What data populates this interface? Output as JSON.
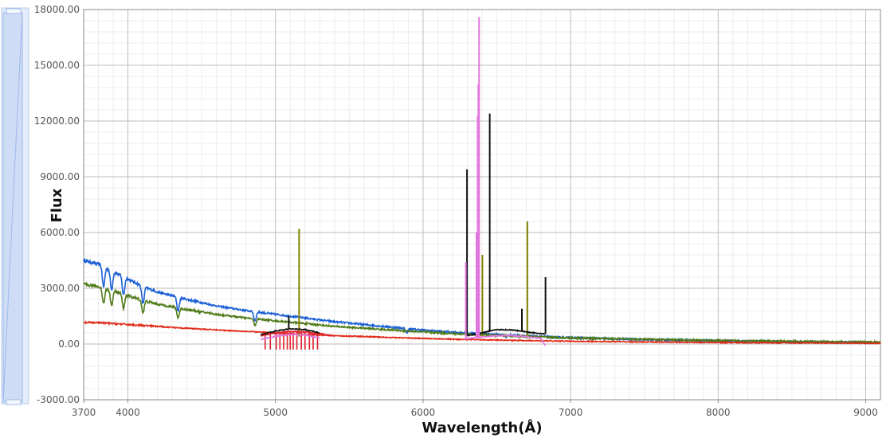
{
  "chart_data": {
    "type": "line",
    "title": "",
    "xlabel": "Wavelength(Å)",
    "ylabel": "Flux",
    "xlim": [
      3700,
      9100
    ],
    "ylim": [
      -3000,
      18000
    ],
    "x_ticks": [
      3700,
      4000,
      5000,
      6000,
      7000,
      8000,
      9000
    ],
    "y_ticks": [
      -3000,
      0,
      3000,
      6000,
      9000,
      12000,
      15000,
      18000
    ],
    "y_tick_labels": [
      "-3000.00",
      "0.00",
      "3000.00",
      "6000.00",
      "9000.00",
      "12000.00",
      "15000.00",
      "18000.00"
    ],
    "grid": true,
    "legend": "none",
    "series": [
      {
        "color": "#1a5fd6",
        "wavelength_range": [
          3700,
          9100
        ],
        "points": [
          [
            3700,
            4500
          ],
          [
            3800,
            4300
          ],
          [
            3900,
            3900
          ],
          [
            4000,
            3500
          ],
          [
            4100,
            3100
          ],
          [
            4200,
            2800
          ],
          [
            4400,
            2400
          ],
          [
            4600,
            2050
          ],
          [
            4800,
            1800
          ],
          [
            5000,
            1600
          ],
          [
            5200,
            1400
          ],
          [
            5400,
            1200
          ],
          [
            5600,
            1050
          ],
          [
            5800,
            900
          ],
          [
            6000,
            750
          ],
          [
            6200,
            640
          ],
          [
            6400,
            560
          ],
          [
            6600,
            480
          ],
          [
            6800,
            400
          ],
          [
            7000,
            340
          ],
          [
            7500,
            240
          ],
          [
            8000,
            170
          ],
          [
            8500,
            120
          ],
          [
            9100,
            80
          ]
        ],
        "absorption_lines": [
          [
            3835,
            3100
          ],
          [
            3889,
            2900
          ],
          [
            3970,
            2800
          ],
          [
            4102,
            2600
          ],
          [
            4340,
            2100
          ],
          [
            4861,
            1400
          ],
          [
            5890,
            650
          ],
          [
            6563,
            350
          ]
        ]
      },
      {
        "color": "#4e7a17",
        "wavelength_range": [
          3700,
          9100
        ],
        "points": [
          [
            3700,
            3200
          ],
          [
            3800,
            3100
          ],
          [
            3900,
            2850
          ],
          [
            4000,
            2600
          ],
          [
            4100,
            2350
          ],
          [
            4200,
            2150
          ],
          [
            4400,
            1850
          ],
          [
            4600,
            1600
          ],
          [
            4800,
            1400
          ],
          [
            5000,
            1250
          ],
          [
            5200,
            1100
          ],
          [
            5400,
            950
          ],
          [
            5600,
            850
          ],
          [
            5800,
            750
          ],
          [
            6000,
            650
          ],
          [
            6200,
            560
          ],
          [
            6400,
            500
          ],
          [
            6600,
            430
          ],
          [
            6800,
            380
          ],
          [
            7000,
            330
          ],
          [
            7500,
            250
          ],
          [
            8000,
            190
          ],
          [
            8500,
            140
          ],
          [
            9100,
            100
          ]
        ],
        "absorption_lines": [
          [
            3835,
            2400
          ],
          [
            3889,
            2200
          ],
          [
            3970,
            2100
          ],
          [
            4102,
            1900
          ],
          [
            4340,
            1500
          ],
          [
            4861,
            1000
          ]
        ]
      },
      {
        "color": "#e02a18",
        "wavelength_range": [
          3700,
          9100
        ],
        "points": [
          [
            3700,
            1150
          ],
          [
            3800,
            1150
          ],
          [
            4000,
            1050
          ],
          [
            4200,
            950
          ],
          [
            4400,
            850
          ],
          [
            4600,
            760
          ],
          [
            4800,
            680
          ],
          [
            5000,
            600
          ],
          [
            5200,
            520
          ],
          [
            5400,
            450
          ],
          [
            5600,
            400
          ],
          [
            5800,
            350
          ],
          [
            6000,
            300
          ],
          [
            6200,
            260
          ],
          [
            6400,
            230
          ],
          [
            6600,
            200
          ],
          [
            6800,
            170
          ],
          [
            7000,
            150
          ],
          [
            7500,
            110
          ],
          [
            8000,
            80
          ],
          [
            8500,
            60
          ],
          [
            9100,
            40
          ]
        ],
        "absorption_lines": []
      },
      {
        "color": "#808000",
        "emission_lines": [
          [
            5160,
            6200
          ],
          [
            6402,
            4800
          ],
          [
            6707,
            6600
          ]
        ]
      },
      {
        "color": "#e0202c",
        "wavelength_range": [
          4900,
          5400
        ],
        "points": [
          [
            4900,
            450
          ],
          [
            5000,
            600
          ],
          [
            5100,
            680
          ],
          [
            5200,
            650
          ],
          [
            5300,
            560
          ],
          [
            5400,
            420
          ]
        ],
        "emission_lines": [],
        "dips": [
          4930,
          4965,
          5005,
          5030,
          5055,
          5080,
          5100,
          5120,
          5145,
          5175,
          5200,
          5230,
          5255,
          5285
        ]
      },
      {
        "color": "#111111",
        "wavelength_range": [
          4900,
          5300
        ],
        "points": [
          [
            4900,
            500
          ],
          [
            5000,
            700
          ],
          [
            5100,
            820
          ],
          [
            5200,
            780
          ],
          [
            5300,
            600
          ]
        ],
        "emission_lines": [
          [
            5090,
            1500
          ]
        ]
      },
      {
        "color": "#111111",
        "wavelength_range": [
          6300,
          6830
        ],
        "points": [
          [
            6300,
            450
          ],
          [
            6400,
            600
          ],
          [
            6500,
            780
          ],
          [
            6600,
            760
          ],
          [
            6700,
            650
          ],
          [
            6800,
            560
          ],
          [
            6830,
            540
          ]
        ],
        "emission_lines": [
          [
            6298,
            9400
          ],
          [
            6452,
            12400
          ],
          [
            6670,
            1900
          ],
          [
            6830,
            3600
          ]
        ]
      },
      {
        "color": "#e276de",
        "wavelength_range": [
          4900,
          5300
        ],
        "points": [
          [
            4900,
            250
          ],
          [
            5000,
            420
          ],
          [
            5100,
            520
          ],
          [
            5200,
            480
          ],
          [
            5300,
            330
          ]
        ],
        "emission_lines": []
      },
      {
        "color": "#e276de",
        "wavelength_range": [
          6280,
          6830
        ],
        "points": [
          [
            6280,
            280
          ],
          [
            6400,
            380
          ],
          [
            6500,
            450
          ],
          [
            6600,
            450
          ],
          [
            6700,
            400
          ],
          [
            6800,
            300
          ],
          [
            6830,
            -100
          ]
        ],
        "emission_lines": [
          [
            6290,
            4400
          ],
          [
            6362,
            6000
          ],
          [
            6370,
            12300
          ],
          [
            6375,
            14000
          ],
          [
            6380,
            17600
          ]
        ]
      }
    ]
  }
}
